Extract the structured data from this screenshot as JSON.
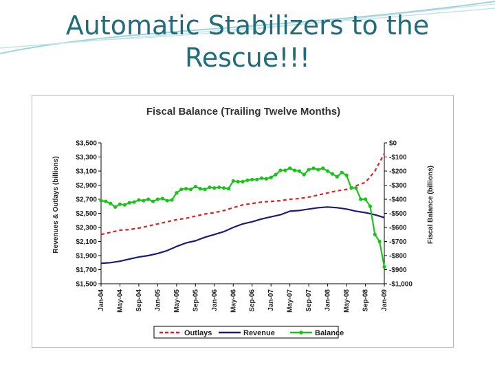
{
  "slide": {
    "title_line1": "Automatic Stabilizers to the",
    "title_line2": "Rescue!!!"
  },
  "colors": {
    "title": "#1f6d7a",
    "outlays": "#e02020",
    "revenue": "#1a1a7a",
    "balance": "#19c419"
  },
  "chart_data": {
    "type": "line",
    "title": "Fiscal Balance (Trailing Twelve Months)",
    "ylabel": "Revenues & Outlays (billions)",
    "y2label": "Fiscal Balance (billions)",
    "ylim": [
      1500,
      3500
    ],
    "y2lim": [
      -1000,
      0
    ],
    "yticks": [
      "$3,500",
      "$3,300",
      "$3,100",
      "$2,900",
      "$2,700",
      "$2,500",
      "$2,300",
      "$2,100",
      "$1,900",
      "$1,700",
      "$1,500"
    ],
    "y2ticks": [
      "$0",
      "-$100",
      "-$200",
      "-$300",
      "-$400",
      "-$500",
      "-$600",
      "-$700",
      "-$800",
      "-$900",
      "-$1,000"
    ],
    "x_tick_labels": [
      "Jan-04",
      "May-04",
      "Sep-04",
      "Jan-05",
      "May-05",
      "Sep-05",
      "Jan-06",
      "May-06",
      "Sep-06",
      "Jan-07",
      "May-07",
      "Sep-07",
      "Jan-08",
      "May-08",
      "Sep-08",
      "Jan-09"
    ],
    "legend_position": "bottom",
    "grid": false,
    "series": [
      {
        "name": "Outlays",
        "axis": "left",
        "style": "dashed",
        "months": [
          0,
          2,
          4,
          6,
          8,
          10,
          12,
          14,
          16,
          18,
          20,
          22,
          24,
          26,
          28,
          30,
          32,
          34,
          36,
          38,
          40,
          42,
          44,
          46,
          48,
          50,
          52,
          54,
          56,
          58,
          60
        ],
        "values": [
          2200,
          2230,
          2260,
          2270,
          2290,
          2320,
          2350,
          2380,
          2410,
          2430,
          2460,
          2490,
          2510,
          2540,
          2580,
          2620,
          2640,
          2660,
          2670,
          2680,
          2700,
          2710,
          2730,
          2760,
          2790,
          2820,
          2840,
          2890,
          2940,
          3100,
          3350
        ]
      },
      {
        "name": "Revenue",
        "axis": "left",
        "style": "solid",
        "months": [
          0,
          2,
          4,
          6,
          8,
          10,
          12,
          14,
          16,
          18,
          20,
          22,
          24,
          26,
          28,
          30,
          32,
          34,
          36,
          38,
          40,
          42,
          44,
          46,
          48,
          50,
          52,
          54,
          56,
          58,
          60
        ],
        "values": [
          1790,
          1800,
          1820,
          1850,
          1880,
          1900,
          1930,
          1970,
          2030,
          2080,
          2110,
          2160,
          2200,
          2240,
          2300,
          2350,
          2380,
          2420,
          2450,
          2480,
          2530,
          2540,
          2560,
          2580,
          2590,
          2580,
          2560,
          2530,
          2510,
          2480,
          2440
        ]
      },
      {
        "name": "Balance",
        "axis": "right",
        "style": "solid-markers",
        "months": [
          0,
          1,
          2,
          3,
          4,
          5,
          6,
          7,
          8,
          9,
          10,
          11,
          12,
          13,
          14,
          15,
          16,
          17,
          18,
          19,
          20,
          21,
          22,
          23,
          24,
          25,
          26,
          27,
          28,
          29,
          30,
          31,
          32,
          33,
          34,
          35,
          36,
          37,
          38,
          39,
          40,
          41,
          42,
          43,
          44,
          45,
          46,
          47,
          48,
          49,
          50,
          51,
          52,
          53,
          54,
          55,
          56,
          57,
          58,
          59,
          60
        ],
        "values": [
          -410,
          -415,
          -430,
          -455,
          -435,
          -440,
          -425,
          -420,
          -405,
          -410,
          -400,
          -415,
          -400,
          -395,
          -410,
          -405,
          -355,
          -330,
          -325,
          -330,
          -310,
          -325,
          -330,
          -315,
          -320,
          -315,
          -320,
          -325,
          -270,
          -275,
          -275,
          -265,
          -260,
          -260,
          -250,
          -255,
          -245,
          -225,
          -195,
          -195,
          -180,
          -195,
          -200,
          -225,
          -190,
          -180,
          -190,
          -180,
          -200,
          -220,
          -240,
          -210,
          -230,
          -320,
          -320,
          -400,
          -400,
          -450,
          -650,
          -700,
          -880
        ]
      }
    ]
  }
}
